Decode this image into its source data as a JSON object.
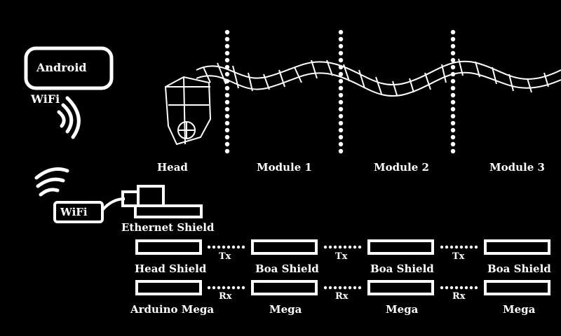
{
  "android": {
    "label": "Android",
    "wifi": "WiFi"
  },
  "wifi_module": {
    "label": "WiFi"
  },
  "ethernet_shield": {
    "label": "Ethernet Shield"
  },
  "robot": {
    "sections": [
      "Head",
      "Module 1",
      "Module 2",
      "Module 3"
    ]
  },
  "shields": [
    "Head Shield",
    "Boa Shield",
    "Boa Shield",
    "Boa Shield"
  ],
  "boards": [
    "Arduino Mega",
    "Mega",
    "Mega",
    "Mega"
  ],
  "links": {
    "tx": "Tx",
    "rx": "Rx"
  }
}
